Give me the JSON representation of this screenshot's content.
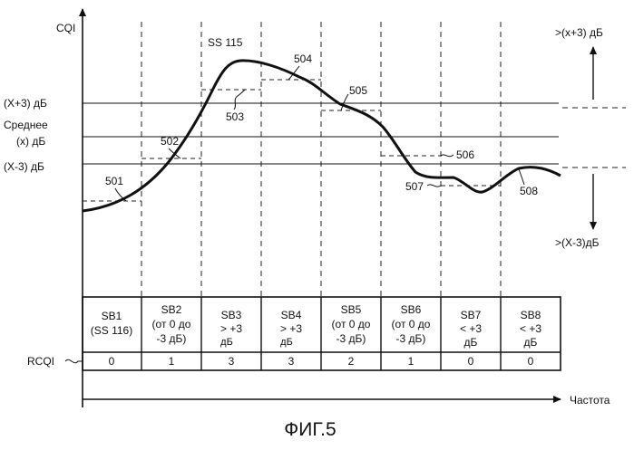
{
  "axes": {
    "y_label": "CQI",
    "x_label": "Частота",
    "row_label": "RCQI"
  },
  "levels": {
    "plus3": "(X+3) дБ",
    "mean_line1": "Среднее",
    "mean_line2": "(x) дБ",
    "minus3": "(X-3) дБ"
  },
  "side": {
    "top": ">(x+3) дБ",
    "bottom": ">(X-3)дБ"
  },
  "callouts": {
    "ss115": "SS 115",
    "c501": "501",
    "c502": "502",
    "c503": "503",
    "c504": "504",
    "c505": "505",
    "c506": "506",
    "c507": "507",
    "c508": "508"
  },
  "subbands": [
    {
      "lines": [
        "SB1",
        "(SS 116)"
      ],
      "rcqi": "0"
    },
    {
      "lines": [
        "SB2",
        "(от 0 до",
        "-3 дБ)"
      ],
      "rcqi": "1"
    },
    {
      "lines": [
        "SB3",
        "> +3",
        "дБ"
      ],
      "rcqi": "3"
    },
    {
      "lines": [
        "SB4",
        "> +3",
        "дБ"
      ],
      "rcqi": "3"
    },
    {
      "lines": [
        "SB5",
        "(от 0 до",
        "-3 дБ)"
      ],
      "rcqi": "2"
    },
    {
      "lines": [
        "SB6",
        "(от 0 до",
        "-3 дБ)"
      ],
      "rcqi": "1"
    },
    {
      "lines": [
        "SB7",
        "< +3",
        "дБ"
      ],
      "rcqi": "0"
    },
    {
      "lines": [
        "SB8",
        "< +3",
        "дБ"
      ],
      "rcqi": "0"
    }
  ],
  "caption": "ФИГ.5"
}
